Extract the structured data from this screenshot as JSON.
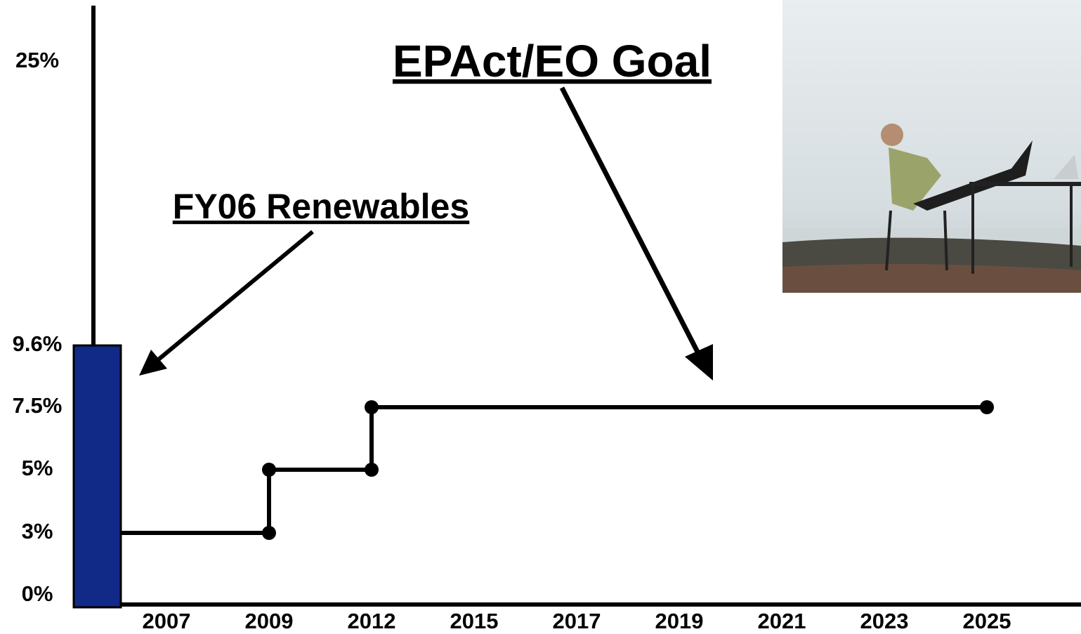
{
  "chart_data": {
    "type": "step",
    "categories": [
      "2007",
      "2009",
      "2012",
      "2015",
      "2017",
      "2019",
      "2021",
      "2023",
      "2025"
    ],
    "bar": {
      "name": "FY06 Renewables",
      "value": 9.6,
      "color": "#112a88"
    },
    "line": {
      "name": "EPAct/EO Goal",
      "color": "#000000",
      "x": [
        "2007",
        "2009",
        "2009",
        "2012",
        "2012",
        "2025"
      ],
      "values": [
        3,
        3,
        5,
        5,
        7.5,
        7.5
      ],
      "markers": [
        false,
        true,
        true,
        true,
        true,
        true
      ]
    },
    "ylim": [
      0,
      25
    ],
    "yticks": [
      {
        "value": 0,
        "label": "0%"
      },
      {
        "value": 3,
        "label": "3%"
      },
      {
        "value": 5,
        "label": "5%"
      },
      {
        "value": 7.5,
        "label": "7.5%"
      },
      {
        "value": 9.6,
        "label": "9.6%"
      },
      {
        "value": 25,
        "label": "25%"
      }
    ]
  }
}
